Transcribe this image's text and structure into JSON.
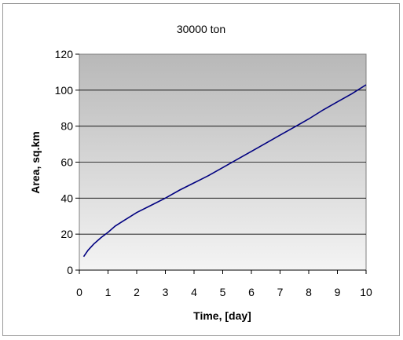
{
  "chart_data": {
    "type": "line",
    "title": "30000 ton",
    "xlabel": "Time, [day]",
    "ylabel": "Area, sq.km",
    "xlim": [
      0,
      10
    ],
    "ylim": [
      0,
      120
    ],
    "xticks": [
      "0",
      "1",
      "2",
      "3",
      "4",
      "5",
      "6",
      "7",
      "8",
      "9",
      "10"
    ],
    "yticks": [
      "0",
      "20",
      "40",
      "60",
      "80",
      "100",
      "120"
    ],
    "grid": "horizontal",
    "legend": "none",
    "background": "gray-gradient",
    "colors": {
      "line": "#000080",
      "plot_top": "#b8b8b8",
      "plot_bottom": "#f4f4f4",
      "grid": "#000000"
    },
    "series": [
      {
        "x": [
          0.15,
          0.3,
          0.5,
          0.75,
          1,
          1.25,
          1.5,
          2,
          2.5,
          3,
          3.5,
          4,
          4.5,
          5,
          5.5,
          6,
          6.5,
          7,
          7.5,
          8,
          8.5,
          9,
          9.5,
          10
        ],
        "values": [
          7.5,
          11,
          14.5,
          18,
          21,
          24.5,
          27,
          32,
          36,
          40,
          44.5,
          48.5,
          52.5,
          57,
          61.5,
          66,
          70.5,
          75,
          79.5,
          84,
          89,
          93.5,
          98,
          103
        ]
      }
    ]
  }
}
